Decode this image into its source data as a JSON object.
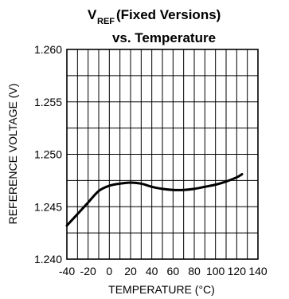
{
  "chart_data": {
    "type": "line",
    "title_main": "V",
    "title_subscript": "REF",
    "title_rest": " (Fixed Versions)",
    "title_line2": "vs. Temperature",
    "xlabel": "TEMPERATURE (°C)",
    "ylabel": "REFERENCE VOLTAGE (V)",
    "xlim": [
      -40,
      140
    ],
    "ylim": [
      1.24,
      1.26
    ],
    "x_ticks": [
      -40,
      -20,
      0,
      20,
      40,
      60,
      80,
      100,
      120,
      140
    ],
    "x_tick_labels": [
      "-40",
      "-20",
      "0",
      "20",
      "40",
      "60",
      "80",
      "100",
      "120",
      "140"
    ],
    "y_ticks": [
      1.24,
      1.245,
      1.25,
      1.255,
      1.26
    ],
    "y_tick_labels": [
      "1.240",
      "1.245",
      "1.250",
      "1.255",
      "1.260"
    ],
    "x_minor_step": 10,
    "y_minor_step": 0.0025,
    "grid": true,
    "series": [
      {
        "color": "#000000",
        "x": [
          -40,
          -30,
          -20,
          -10,
          0,
          10,
          20,
          30,
          40,
          50,
          60,
          70,
          80,
          90,
          100,
          110,
          120,
          125
        ],
        "y": [
          1.2432,
          1.2443,
          1.2454,
          1.2465,
          1.247,
          1.2472,
          1.2473,
          1.2472,
          1.2469,
          1.2467,
          1.2466,
          1.2466,
          1.2467,
          1.2469,
          1.2471,
          1.2474,
          1.2478,
          1.2481
        ]
      }
    ]
  }
}
